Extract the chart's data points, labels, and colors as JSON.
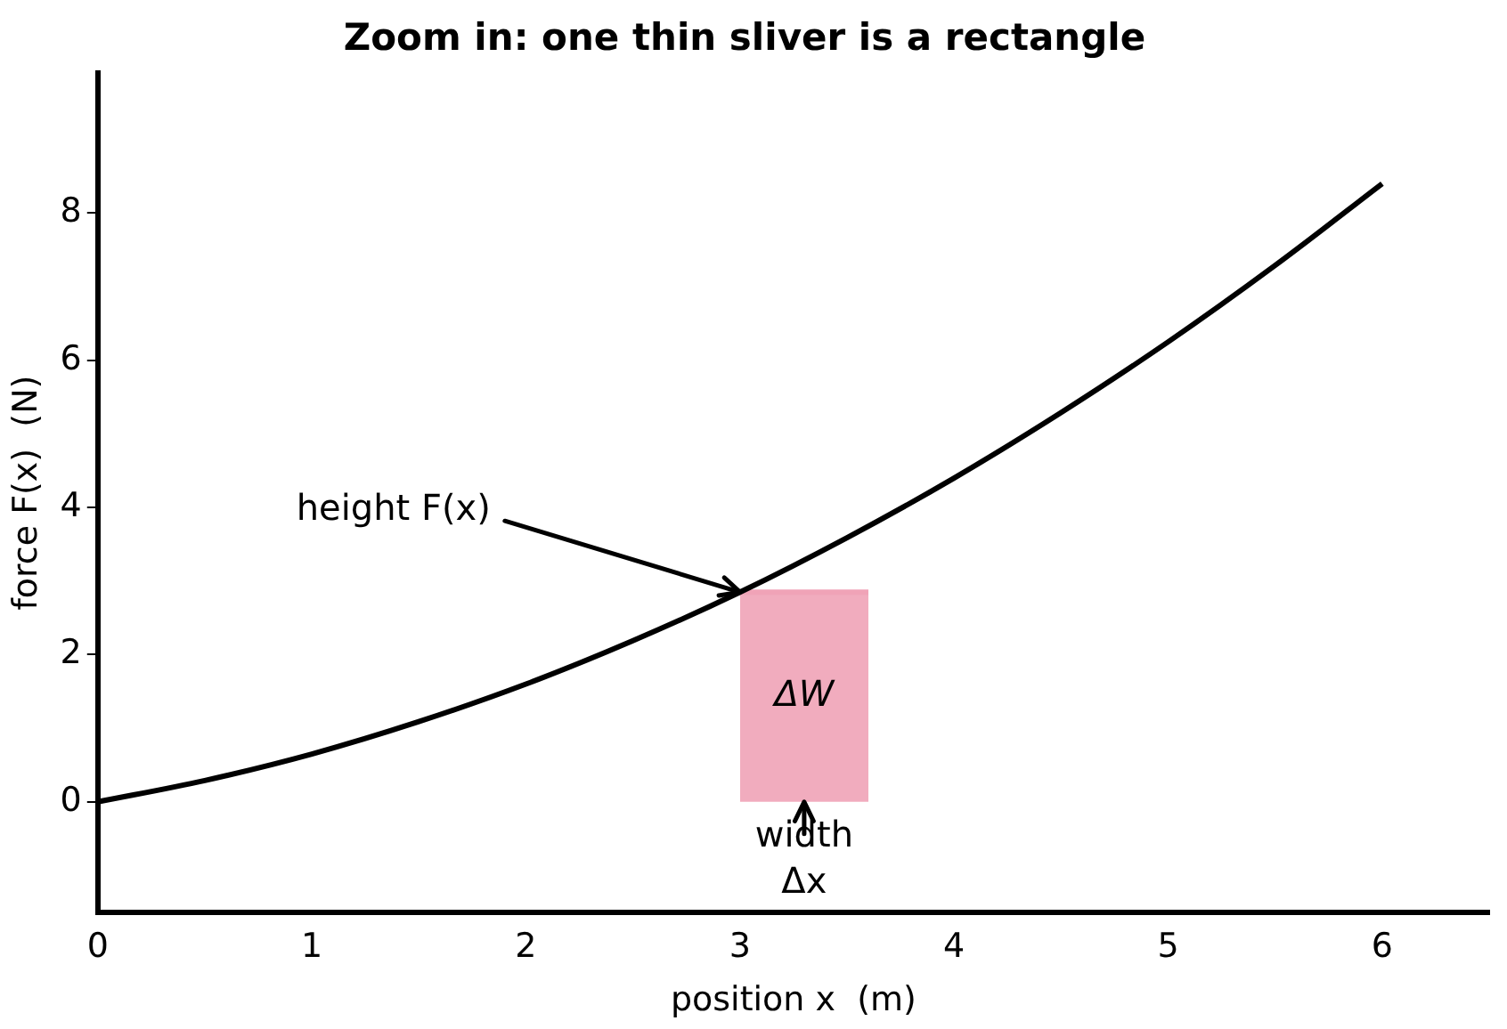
{
  "chart_data": {
    "type": "line",
    "title": "Zoom in: one thin sliver is a rectangle",
    "xlabel": "position x  (m)",
    "ylabel": "force F(x)  (N)",
    "xlim": [
      0,
      6.5
    ],
    "xticks": [
      0,
      1,
      2,
      3,
      4,
      5,
      6
    ],
    "ylim": [
      -1.5,
      9.9
    ],
    "yticks": [
      0,
      2,
      4,
      6,
      8
    ],
    "grid": false,
    "legend": false,
    "marker": "none",
    "line_style": "solid",
    "series": [
      {
        "color": "#000000",
        "x": [
          0,
          0.5,
          1,
          1.5,
          2,
          2.5,
          3,
          3.5,
          4,
          4.5,
          5,
          5.5,
          6
        ],
        "values": [
          0,
          0.29,
          0.65,
          1.09,
          1.6,
          2.19,
          2.85,
          3.59,
          4.4,
          5.29,
          6.25,
          7.29,
          8.4
        ]
      },
      {
        "type": "area",
        "color": "#f0a3b7",
        "x": [
          3,
          3.6
        ],
        "values": [
          2.85,
          2.85
        ]
      }
    ],
    "annotations": [
      {
        "text": "height F(x)",
        "x": 3,
        "y": 2.85
      },
      "ΔW",
      {
        "text": "width\nΔx",
        "x": 3.3,
        "y": 0
      }
    ]
  }
}
